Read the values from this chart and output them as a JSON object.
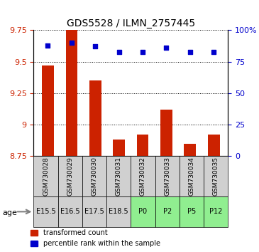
{
  "title": "GDS5528 / ILMN_2757445",
  "samples": [
    "GSM730028",
    "GSM730029",
    "GSM730030",
    "GSM730031",
    "GSM730032",
    "GSM730033",
    "GSM730034",
    "GSM730035"
  ],
  "ages": [
    "E15.5",
    "E16.5",
    "E17.5",
    "E18.5",
    "P0",
    "P2",
    "P5",
    "P12"
  ],
  "age_colors": [
    "#d3d3d3",
    "#d3d3d3",
    "#d3d3d3",
    "#d3d3d3",
    "#90ee90",
    "#90ee90",
    "#90ee90",
    "#90ee90"
  ],
  "bar_colors_top4": [
    "#d3d3d3",
    "#d3d3d3",
    "#d3d3d3",
    "#d3d3d3"
  ],
  "bar_colors_bot4": [
    "#90ee90",
    "#90ee90",
    "#90ee90",
    "#90ee90"
  ],
  "transformed_counts": [
    9.47,
    9.75,
    9.35,
    8.88,
    8.92,
    9.12,
    8.85,
    8.92
  ],
  "percentile_ranks": [
    88,
    90,
    87,
    83,
    83,
    86,
    83,
    83
  ],
  "ylim_left": [
    8.75,
    9.75
  ],
  "ylim_right": [
    0,
    100
  ],
  "yticks_left": [
    8.75,
    9.0,
    9.25,
    9.5,
    9.75
  ],
  "yticks_right": [
    0,
    25,
    50,
    75,
    100
  ],
  "ytick_labels_left": [
    "8.75",
    "9",
    "9.25",
    "9.5",
    "9.75"
  ],
  "ytick_labels_right": [
    "0",
    "25",
    "50",
    "75",
    "100%"
  ],
  "bar_color": "#cc2200",
  "dot_color": "#0000cc",
  "bar_width": 0.5,
  "legend_red_label": "transformed count",
  "legend_blue_label": "percentile rank within the sample",
  "sample_box_color": "#c8c8c8",
  "age_row_light_green": "#b2f0b2",
  "age_row_dark_green": "#66dd66"
}
